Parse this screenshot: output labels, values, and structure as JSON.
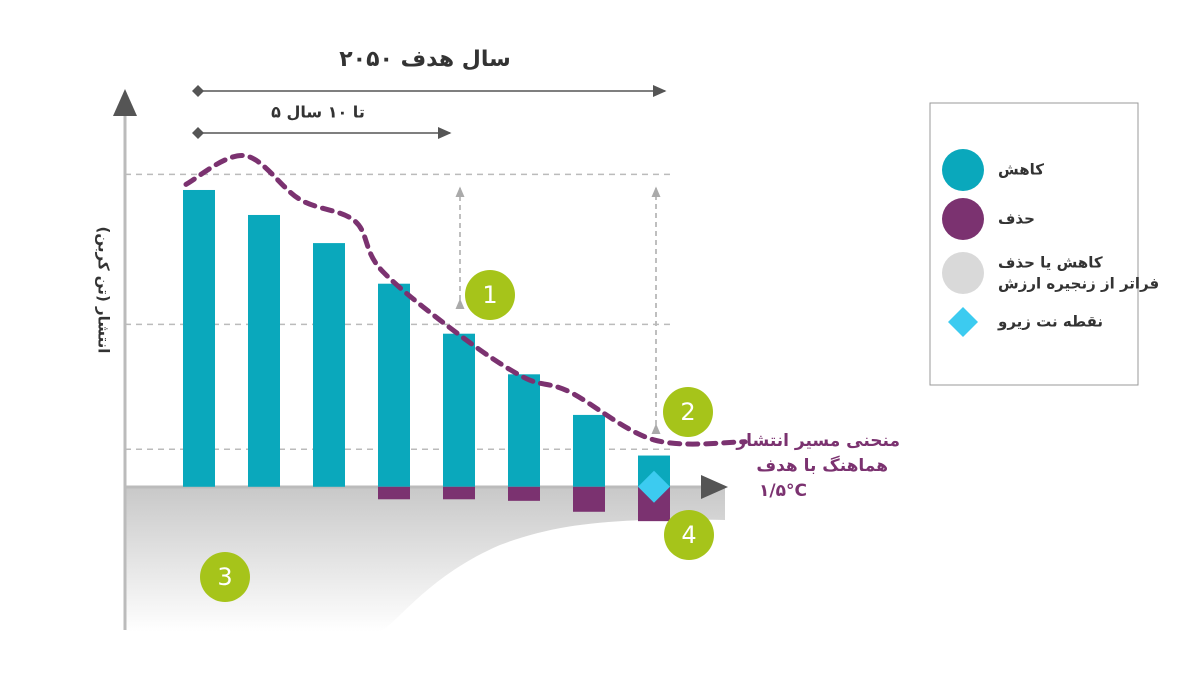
{
  "chart_data": {
    "type": "bar",
    "title": "سال هدف ۲۰۵۰",
    "span_label": "۵ تا ۱۰ سال",
    "y_label": "انتشار (تن کربن)",
    "categories": [
      null,
      null,
      null,
      null,
      null,
      null,
      null,
      null
    ],
    "ylim": [
      -46,
      127
    ],
    "gridlines": [
      100,
      52,
      12
    ],
    "series": [
      {
        "name": "کاهش",
        "color": "#0aa8bc",
        "values": [
          95,
          87,
          78,
          65,
          49,
          36,
          23,
          10
        ]
      },
      {
        "name": "حذف",
        "color": "#7b3270",
        "values": [
          null,
          null,
          null,
          -4,
          -4,
          -4.5,
          -8,
          -11
        ]
      }
    ],
    "curve": {
      "label": [
        "منحنی مسیر انتشار",
        "هماهنگ با هدف",
        "۱/۵°C"
      ],
      "color": "#7b3270",
      "x": [
        -0.2,
        0.7,
        1.55,
        2.4,
        2.8,
        4,
        5,
        5.7,
        7,
        8.4
      ],
      "values": [
        96.8,
        106,
        92,
        85,
        69.5,
        48.7,
        35,
        30.4,
        15,
        14.4
      ]
    },
    "beyond_chain": {
      "name": [
        "کاهش یا حذف",
        "فراتر از زنجیره ارزش"
      ],
      "color": "#d9d9d9"
    },
    "net_zero": {
      "name": "نقطه نت زیرو",
      "color": "#3ccbf0",
      "x": 7,
      "value": 0
    },
    "markers": [
      "1",
      "2",
      "3",
      "4"
    ]
  }
}
